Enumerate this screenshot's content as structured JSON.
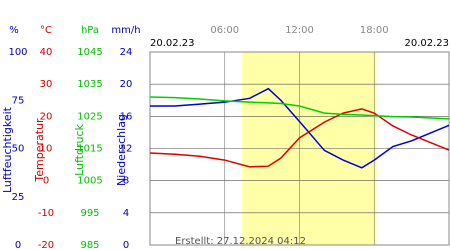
{
  "chart_data": {
    "type": "line",
    "date_left": "20.02.23",
    "date_right": "20.02.23",
    "created": "Erstellt: 27.12.2024 04:12",
    "xlim": [
      0,
      24
    ],
    "xticks": [
      {
        "value": 6,
        "label": "06:00"
      },
      {
        "value": 12,
        "label": "12:00"
      },
      {
        "value": 18,
        "label": "18:00"
      }
    ],
    "daylight": [
      7.4,
      18.2
    ],
    "daylight_color": "#ffffa8",
    "grid": true,
    "axes": [
      {
        "label": "Luftfeuchtigkeit",
        "unit": "%",
        "color": "#0000c0",
        "lim": [
          0,
          100
        ],
        "ticks": [
          0,
          25,
          50,
          75,
          100
        ]
      },
      {
        "label": "Temperatur",
        "unit": "°C",
        "color": "#d00000",
        "lim": [
          -20,
          40
        ],
        "ticks": [
          -20,
          -10,
          0,
          10,
          20,
          30,
          40
        ]
      },
      {
        "label": "Luftdruck",
        "unit": "hPa",
        "color": "#00c000",
        "lim": [
          985,
          1045
        ],
        "ticks": [
          985,
          995,
          1005,
          1015,
          1025,
          1035,
          1045
        ]
      },
      {
        "label": "Niederschlag",
        "unit": "mm/h",
        "color": "#0000c0",
        "lim": [
          0,
          24
        ],
        "ticks": [
          0,
          4,
          8,
          12,
          16,
          20,
          24
        ]
      }
    ],
    "x": [
      0,
      2,
      4,
      6,
      8,
      9.5,
      10.5,
      12,
      14,
      15.5,
      17,
      18,
      19.5,
      21,
      24
    ],
    "series": [
      {
        "name": "Luftfeuchtigkeit",
        "axis": 0,
        "color": "#0000d0",
        "values": [
          72,
          72,
          73,
          74,
          76,
          81,
          75,
          64,
          49,
          44,
          40,
          44,
          51,
          54,
          62
        ]
      },
      {
        "name": "Temperatur",
        "axis": 1,
        "color": "#e00000",
        "values": [
          8.6,
          8.2,
          7.6,
          6.4,
          4.3,
          4.5,
          7,
          13.3,
          18.2,
          21,
          22.3,
          21,
          17,
          14.2,
          9.5
        ]
      },
      {
        "name": "Luftdruck",
        "axis": 2,
        "color": "#00d000",
        "values": [
          1031,
          1030.8,
          1030.4,
          1029.8,
          1029.4,
          1029.2,
          1029,
          1028.2,
          1026,
          1025.6,
          1025.4,
          1025.2,
          1024.9,
          1024.8,
          1024.2
        ]
      }
    ]
  }
}
